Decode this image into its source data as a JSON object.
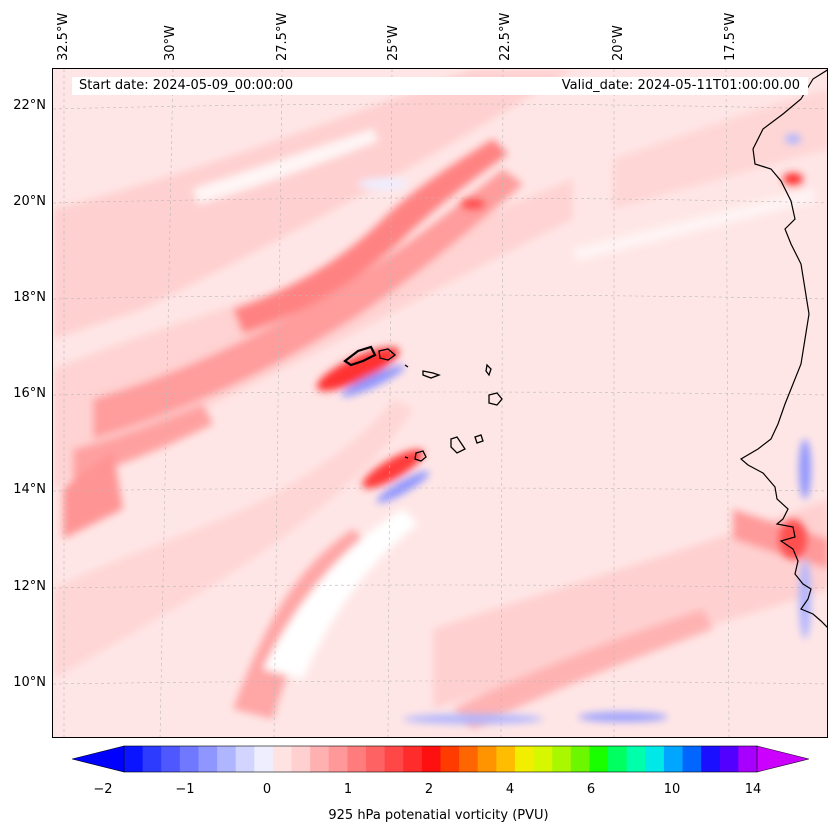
{
  "map": {
    "start_date_label": "Start date: 2024-05-09_00:00:00",
    "valid_date_label": "Valid_date: 2024-05-11T01:00:00.00",
    "lon_labels": [
      "32.5°W",
      "30°W",
      "27.5°W",
      "25°W",
      "22.5°W",
      "20°W",
      "17.5°W"
    ],
    "lat_labels": [
      "22°N",
      "20°N",
      "18°N",
      "16°N",
      "14°N",
      "12°N",
      "10°N"
    ],
    "variable": "925 hPa potential vorticity",
    "region": "Cabo Verde and West African coast"
  },
  "colorbar": {
    "label": "925 hPa potenatial vorticity (PVU)",
    "ticks": [
      "−2",
      "−1",
      "0",
      "1",
      "2",
      "4",
      "6",
      "10",
      "14"
    ],
    "colors": [
      "#0a14ff",
      "#2d3bff",
      "#4f58ff",
      "#7078ff",
      "#8f96ff",
      "#b0b5ff",
      "#d2d5ff",
      "#eeeeff",
      "#ffe3e3",
      "#ffd0d0",
      "#ffb0b0",
      "#ff9898",
      "#ff7c7c",
      "#ff6262",
      "#ff4747",
      "#ff2c2c",
      "#ff1010",
      "#ff3b00",
      "#ff6500",
      "#ff9300",
      "#ffbc00",
      "#f2ee00",
      "#d7f700",
      "#aaf800",
      "#6cf700",
      "#1aff00",
      "#00ff60",
      "#00ffaa",
      "#00e8e8",
      "#00a6ff",
      "#0066ff",
      "#1a10ff",
      "#5200ff",
      "#a800ff"
    ],
    "extend_low_color": "#0000ff",
    "extend_high_color": "#cc00ff"
  }
}
